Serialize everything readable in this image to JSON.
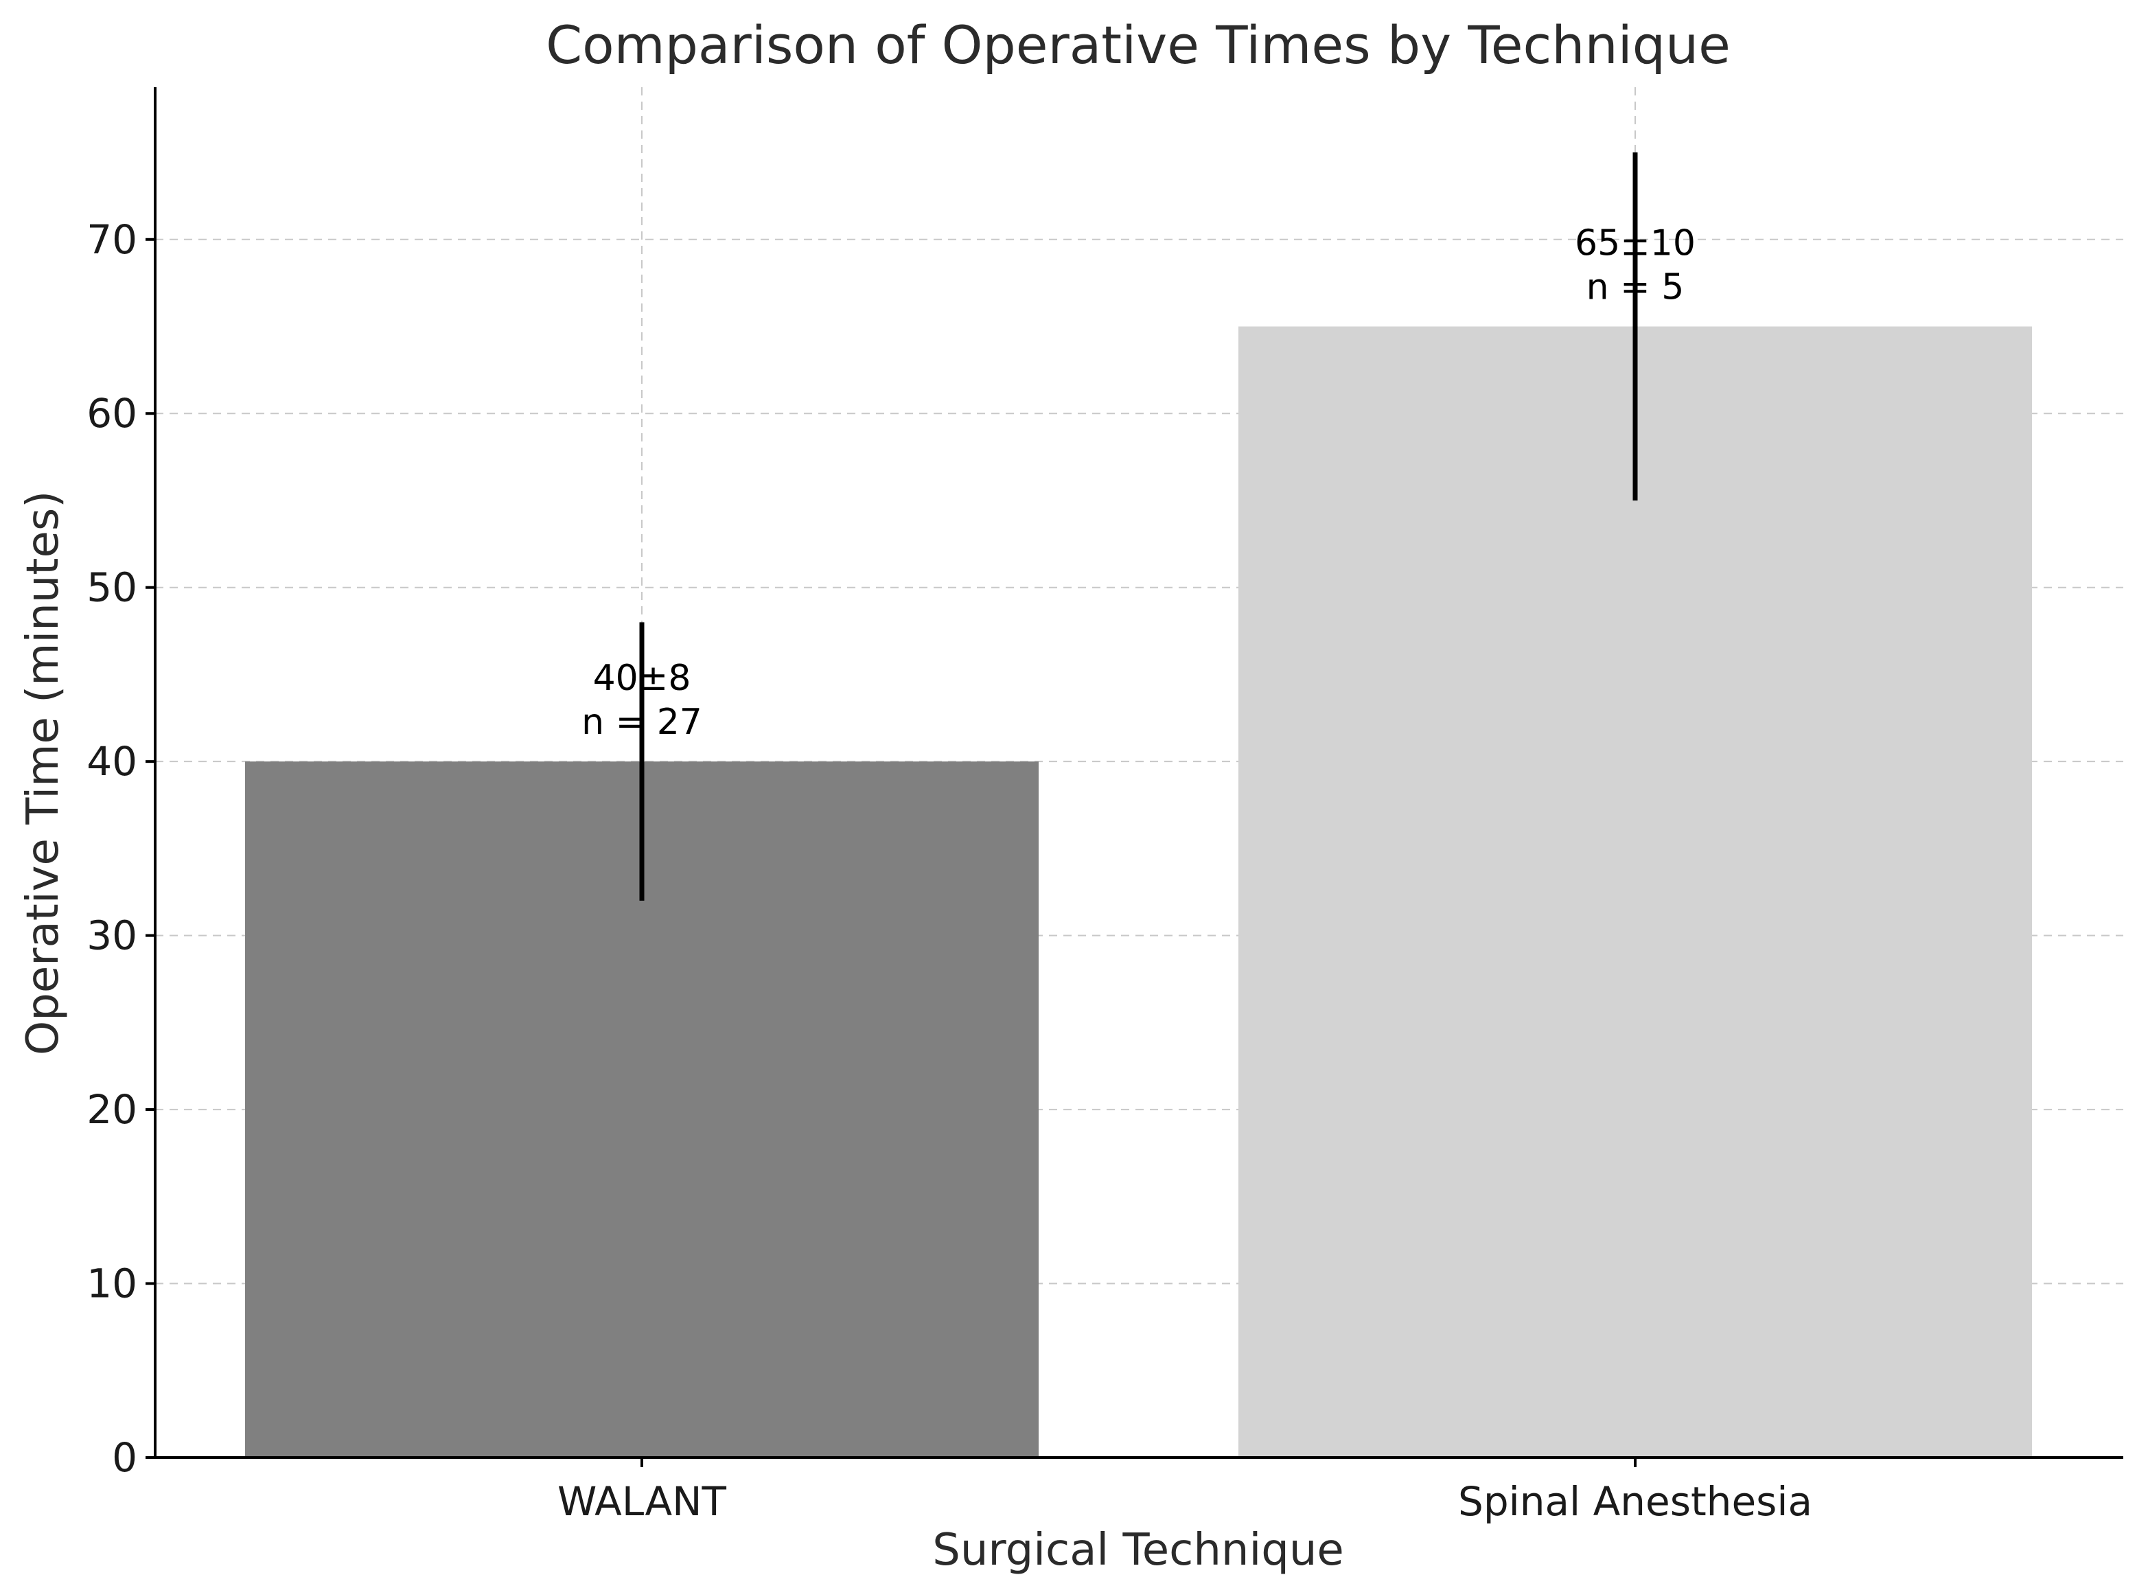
{
  "chart_data": {
    "type": "bar",
    "title": "Comparison of Operative Times by Technique",
    "xlabel": "Surgical Technique",
    "ylabel": "Operative Time (minutes)",
    "categories": [
      "WALANT",
      "Spinal Anesthesia"
    ],
    "values": [
      40,
      65
    ],
    "errors": [
      8,
      10
    ],
    "colors": [
      "#808080",
      "#d3d3d3"
    ],
    "annotations": [
      {
        "line1": "40±8",
        "line2": "n = 27"
      },
      {
        "line1": "65±10",
        "line2": "n = 5"
      }
    ],
    "ylim": [
      0,
      78.75
    ],
    "yticks": [
      0,
      10,
      20,
      30,
      40,
      50,
      60,
      70
    ],
    "grid": true
  }
}
